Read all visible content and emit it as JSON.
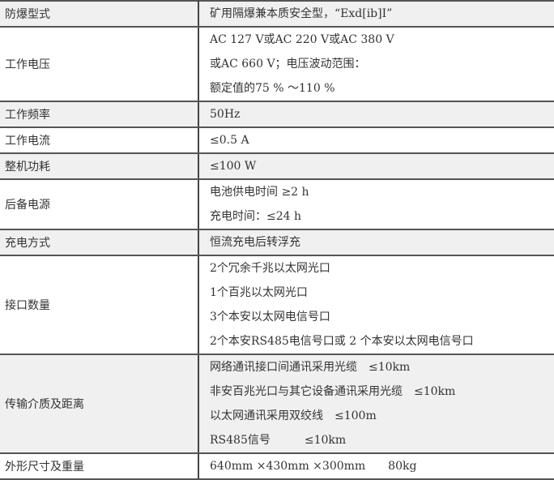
{
  "rows": [
    {
      "label": "防爆型式",
      "lines": [
        "矿用隔爆兼本质安全型，“Exd[ib]I”"
      ]
    },
    {
      "label": "工作电压",
      "lines": [
        "AC 127 V或AC 220 V或AC 380 V",
        "或AC 660 V；电压波动范围：",
        "额定值的75 % ～110 %"
      ]
    },
    {
      "label": "工作频率",
      "lines": [
        "50Hz"
      ]
    },
    {
      "label": "工作电流",
      "lines": [
        "≤0.5 A"
      ]
    },
    {
      "label": "整机功耗",
      "lines": [
        "≤100 W"
      ]
    },
    {
      "label": "后备电源",
      "lines": [
        "电池供电时间 ≥2 h",
        "充电时间：≤24 h"
      ]
    },
    {
      "label": "充电方式",
      "lines": [
        "恒流充电后转浮充"
      ]
    },
    {
      "label": "接口数量",
      "lines": [
        "2个冗余千兆以太网光口",
        "1个百兆以太网光口",
        "3个本安以太网电信号口",
        "2个本安RS485电信号口或 2 个本安以太网电信号口"
      ]
    },
    {
      "label": "传输介质及距离",
      "lines": [
        "网络通讯接口间通讯采用光缆　≤10km",
        "非安百兆光口与其它设备通讯采用光缆　≤10km",
        "以太网通讯采用双绞线　≤100m",
        "RS485信号　　　≤10km"
      ]
    },
    {
      "label": "外形尺寸及重量",
      "lines": [
        "640mm ×430mm ×300mm　　80kg"
      ]
    }
  ]
}
